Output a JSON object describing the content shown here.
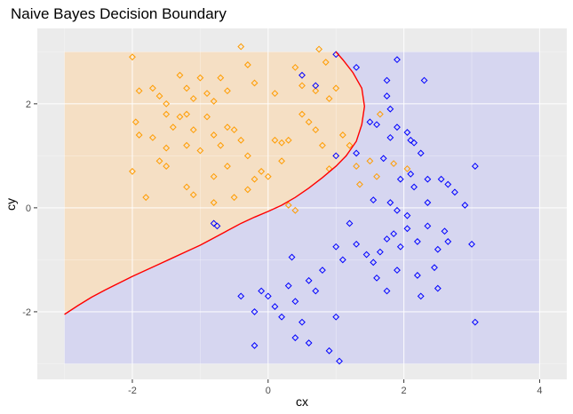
{
  "chart_data": {
    "type": "scatter",
    "title": "Naive Bayes Decision Boundary",
    "xlabel": "cx",
    "ylabel": "cy",
    "xlim": [
      -3.4,
      4.4
    ],
    "ylim": [
      -3.3,
      3.45
    ],
    "x_ticks": [
      -2,
      0,
      2,
      4
    ],
    "y_ticks": [
      -2,
      0,
      2
    ],
    "x_tick_labels": [
      "-2",
      "0",
      "2",
      "4"
    ],
    "y_tick_labels": [
      "-2",
      "0",
      "2"
    ],
    "grid": true,
    "legend": "none",
    "grid_region": {
      "x": [
        -3,
        4
      ],
      "y": [
        -3,
        3
      ]
    },
    "colors": {
      "panel": "#ebebeb",
      "gridline": "#ffffff",
      "class_orange": "#ff9c00",
      "class_blue": "#0000ff",
      "region_orange": "#f5dfc4",
      "region_blue": "#d6d6f0",
      "boundary": "#ff0000"
    },
    "boundary": [
      [
        -3.0,
        -2.05
      ],
      [
        -2.8,
        -1.88
      ],
      [
        -2.6,
        -1.72
      ],
      [
        -2.4,
        -1.58
      ],
      [
        -2.2,
        -1.45
      ],
      [
        -2.0,
        -1.32
      ],
      [
        -1.8,
        -1.2
      ],
      [
        -1.6,
        -1.08
      ],
      [
        -1.4,
        -0.96
      ],
      [
        -1.2,
        -0.84
      ],
      [
        -1.0,
        -0.72
      ],
      [
        -0.8,
        -0.58
      ],
      [
        -0.6,
        -0.44
      ],
      [
        -0.4,
        -0.3
      ],
      [
        -0.2,
        -0.18
      ],
      [
        0.0,
        -0.07
      ],
      [
        0.2,
        0.05
      ],
      [
        0.4,
        0.2
      ],
      [
        0.6,
        0.38
      ],
      [
        0.8,
        0.58
      ],
      [
        1.0,
        0.8
      ],
      [
        1.15,
        1.0
      ],
      [
        1.3,
        1.28
      ],
      [
        1.38,
        1.6
      ],
      [
        1.42,
        1.95
      ],
      [
        1.38,
        2.3
      ],
      [
        1.25,
        2.6
      ],
      [
        1.1,
        2.85
      ],
      [
        1.0,
        3.0
      ]
    ],
    "series": [
      {
        "class": "orange",
        "points": [
          [
            -2.0,
            2.9
          ],
          [
            -1.9,
            2.25
          ],
          [
            -1.7,
            2.3
          ],
          [
            -1.6,
            2.15
          ],
          [
            -1.5,
            2.0
          ],
          [
            -1.3,
            2.55
          ],
          [
            -1.2,
            2.3
          ],
          [
            -1.1,
            2.1
          ],
          [
            -1.0,
            2.5
          ],
          [
            -0.9,
            2.2
          ],
          [
            -0.8,
            2.05
          ],
          [
            -0.7,
            2.5
          ],
          [
            -0.6,
            2.25
          ],
          [
            -0.4,
            3.1
          ],
          [
            -0.3,
            2.75
          ],
          [
            -0.2,
            2.4
          ],
          [
            0.1,
            2.2
          ],
          [
            0.4,
            2.7
          ],
          [
            0.5,
            2.35
          ],
          [
            0.7,
            2.25
          ],
          [
            0.75,
            3.05
          ],
          [
            0.85,
            2.8
          ],
          [
            0.9,
            2.1
          ],
          [
            1.0,
            2.3
          ],
          [
            -1.95,
            1.65
          ],
          [
            -1.9,
            1.4
          ],
          [
            -1.7,
            1.35
          ],
          [
            -1.6,
            0.9
          ],
          [
            -1.5,
            1.15
          ],
          [
            -1.4,
            1.55
          ],
          [
            -1.3,
            1.75
          ],
          [
            -1.2,
            1.8
          ],
          [
            -1.1,
            1.5
          ],
          [
            -1.0,
            1.1
          ],
          [
            -0.9,
            1.75
          ],
          [
            -0.8,
            1.4
          ],
          [
            -0.7,
            1.2
          ],
          [
            -0.6,
            0.8
          ],
          [
            -0.5,
            1.5
          ],
          [
            -0.4,
            1.3
          ],
          [
            -0.3,
            1.0
          ],
          [
            -0.2,
            0.55
          ],
          [
            -0.1,
            0.7
          ],
          [
            0.0,
            0.6
          ],
          [
            0.1,
            1.3
          ],
          [
            0.2,
            1.25
          ],
          [
            0.3,
            1.3
          ],
          [
            0.5,
            1.8
          ],
          [
            0.6,
            1.65
          ],
          [
            0.7,
            1.5
          ],
          [
            0.8,
            1.2
          ],
          [
            -2.0,
            0.7
          ],
          [
            -1.8,
            0.2
          ],
          [
            -1.5,
            0.8
          ],
          [
            -1.2,
            0.4
          ],
          [
            -1.1,
            0.25
          ],
          [
            -0.8,
            0.1
          ],
          [
            -0.5,
            0.2
          ],
          [
            -0.3,
            0.35
          ],
          [
            0.3,
            0.05
          ],
          [
            0.4,
            -0.05
          ],
          [
            0.9,
            0.75
          ],
          [
            1.1,
            1.4
          ],
          [
            1.2,
            1.2
          ],
          [
            1.3,
            0.8
          ],
          [
            1.5,
            0.9
          ],
          [
            1.35,
            0.45
          ],
          [
            1.85,
            0.85
          ],
          [
            2.05,
            0.75
          ],
          [
            1.6,
            0.6
          ],
          [
            1.65,
            1.8
          ],
          [
            -1.2,
            1.2
          ],
          [
            -0.8,
            0.6
          ],
          [
            -1.5,
            1.8
          ],
          [
            -0.6,
            1.55
          ],
          [
            0.2,
            0.9
          ]
        ]
      },
      {
        "class": "blue",
        "points": [
          [
            0.5,
            2.55
          ],
          [
            0.7,
            2.35
          ],
          [
            1.0,
            2.95
          ],
          [
            1.3,
            2.7
          ],
          [
            1.75,
            2.45
          ],
          [
            1.9,
            2.85
          ],
          [
            1.75,
            2.15
          ],
          [
            1.8,
            1.9
          ],
          [
            2.3,
            2.45
          ],
          [
            1.5,
            1.65
          ],
          [
            1.6,
            1.6
          ],
          [
            1.9,
            1.55
          ],
          [
            2.05,
            1.45
          ],
          [
            1.8,
            1.35
          ],
          [
            2.1,
            1.3
          ],
          [
            2.15,
            1.25
          ],
          [
            1.3,
            1.05
          ],
          [
            1.0,
            1.0
          ],
          [
            1.7,
            0.95
          ],
          [
            2.1,
            0.65
          ],
          [
            2.25,
            1.05
          ],
          [
            1.95,
            0.55
          ],
          [
            2.15,
            0.4
          ],
          [
            2.35,
            0.1
          ],
          [
            2.55,
            0.55
          ],
          [
            2.65,
            0.45
          ],
          [
            2.75,
            0.3
          ],
          [
            2.9,
            0.05
          ],
          [
            3.05,
            0.8
          ],
          [
            1.55,
            0.15
          ],
          [
            1.8,
            0.1
          ],
          [
            1.9,
            -0.05
          ],
          [
            2.05,
            -0.15
          ],
          [
            2.35,
            -0.35
          ],
          [
            2.6,
            -0.45
          ],
          [
            1.3,
            -0.7
          ],
          [
            1.45,
            -0.9
          ],
          [
            1.55,
            -1.05
          ],
          [
            1.65,
            -0.85
          ],
          [
            1.75,
            -0.6
          ],
          [
            1.85,
            -0.5
          ],
          [
            1.95,
            -0.75
          ],
          [
            2.05,
            -0.4
          ],
          [
            2.2,
            -0.65
          ],
          [
            2.5,
            -0.8
          ],
          [
            2.65,
            -0.65
          ],
          [
            3.0,
            -0.7
          ],
          [
            1.9,
            -1.2
          ],
          [
            2.2,
            -1.3
          ],
          [
            2.45,
            -1.15
          ],
          [
            2.5,
            -1.55
          ],
          [
            1.75,
            -1.6
          ],
          [
            1.0,
            -0.75
          ],
          [
            1.1,
            -1.0
          ],
          [
            1.0,
            -2.1
          ],
          [
            -0.4,
            -1.7
          ],
          [
            -0.2,
            -2.0
          ],
          [
            -0.1,
            -1.6
          ],
          [
            0.0,
            -1.7
          ],
          [
            0.1,
            -1.9
          ],
          [
            0.3,
            -1.5
          ],
          [
            0.4,
            -1.8
          ],
          [
            0.6,
            -1.4
          ],
          [
            0.7,
            -1.6
          ],
          [
            0.8,
            -1.2
          ],
          [
            0.35,
            -0.95
          ],
          [
            0.2,
            -2.1
          ],
          [
            0.5,
            -2.2
          ],
          [
            0.4,
            -2.5
          ],
          [
            0.6,
            -2.6
          ],
          [
            0.9,
            -2.75
          ],
          [
            1.05,
            -2.95
          ],
          [
            -0.2,
            -2.65
          ],
          [
            3.05,
            -2.2
          ],
          [
            2.25,
            -1.7
          ],
          [
            -0.8,
            -0.3
          ],
          [
            -0.75,
            -0.35
          ],
          [
            1.6,
            -1.35
          ],
          [
            1.2,
            -0.3
          ],
          [
            2.35,
            0.55
          ]
        ]
      }
    ]
  }
}
